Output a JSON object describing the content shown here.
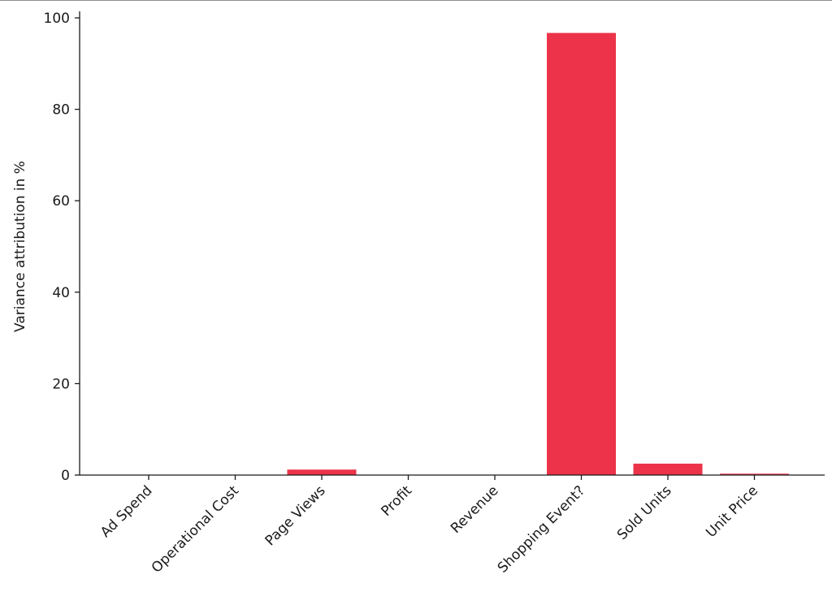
{
  "chart_data": {
    "type": "bar",
    "title": "",
    "xlabel": "",
    "ylabel": "Variance attribution in %",
    "categories": [
      "Ad Spend",
      "Operational Cost",
      "Page Views",
      "Profit",
      "Revenue",
      "Shopping Event?",
      "Sold Units",
      "Unit Price"
    ],
    "values": [
      0,
      0,
      1.2,
      0,
      0,
      96.7,
      2.5,
      0.3
    ],
    "ylim": [
      0,
      100
    ],
    "yticks": [
      0,
      20,
      40,
      60,
      80,
      100
    ],
    "bar_color": "#ec3349",
    "grid": false,
    "legend": "none"
  }
}
